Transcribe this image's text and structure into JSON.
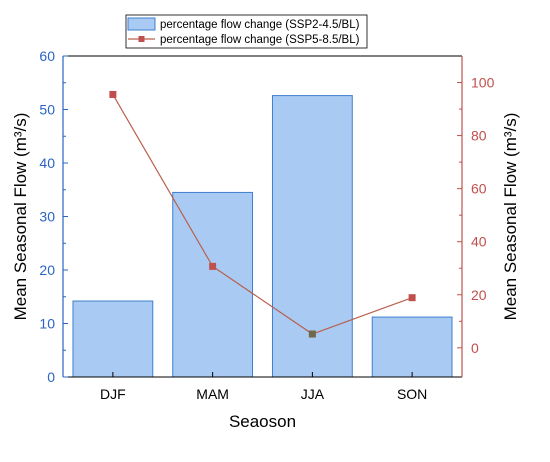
{
  "chart_data": {
    "type": "bar+line (dual y-axis)",
    "categories": [
      "DJF",
      "MAM",
      "JJA",
      "SON"
    ],
    "xlabel": "Seaoson",
    "ylabel_left": "Mean Seasonal Flow (m³/s)",
    "ylabel_right": "Mean Seasonal Flow (m³/s)",
    "ylim_left": [
      0,
      60
    ],
    "ylim_right": [
      -11,
      110
    ],
    "yticks_left": [
      0,
      10,
      20,
      30,
      40,
      50,
      60
    ],
    "yticks_right": [
      0,
      20,
      40,
      60,
      80,
      100
    ],
    "legend_position": "top-center",
    "grid": false,
    "series": [
      {
        "name": "percentage flow change (SSP2-4.5/BL)",
        "type": "bar",
        "axis": "left",
        "values": [
          14.2,
          34.5,
          52.6,
          11.2
        ],
        "color": "#a9cbf3",
        "stroke": "#3d7fd0"
      },
      {
        "name": "percentage flow change (SSP5-8.5/BL)",
        "type": "line",
        "axis": "right",
        "values": [
          95.5,
          30.7,
          5.2,
          18.9
        ],
        "color": "#b8604c",
        "marker_colors": [
          "#c0504d",
          "#c0504d",
          "#6f6a4b",
          "#c0504d"
        ]
      }
    ],
    "left_axis_color": "#2a64c6",
    "right_axis_color": "#c0504d"
  }
}
